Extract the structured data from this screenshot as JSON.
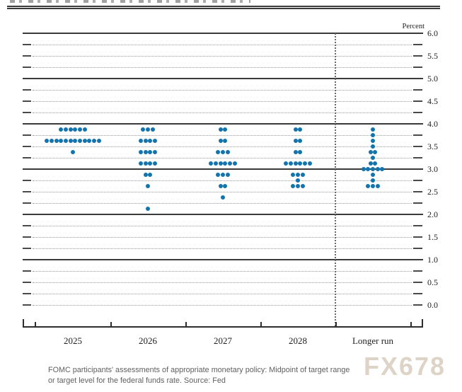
{
  "header": {
    "percent_label": "Percent"
  },
  "watermark": "FX678",
  "caption": {
    "line1": "FOMC participants' assessments of appropriate monetary policy: Midpoint of target range",
    "line2": "or target level for the federal funds rate. Source: Fed"
  },
  "y_axis_labels": [
    "6.0",
    "5.5",
    "5.0",
    "4.5",
    "4.0",
    "3.5",
    "3.0",
    "2.5",
    "2.0",
    "1.5",
    "1.0",
    "0.5",
    "0.0"
  ],
  "chart_data": {
    "type": "scatter",
    "title": "FOMC dot plot",
    "ylabel": "Percent",
    "ylim": [
      0.0,
      6.0
    ],
    "grid_step": 0.25,
    "labeled_tick_step": 0.5,
    "solid_gridlines_at": [
      6.0,
      5.0,
      4.0,
      3.0,
      2.0,
      1.0
    ],
    "grid": "on",
    "legend_position": "none",
    "dot_color": "#1373ad",
    "categories": [
      "2025",
      "2026",
      "2027",
      "2028",
      "Longer run"
    ],
    "separator_before_category": "Longer run",
    "series": [
      {
        "name": "2025",
        "dots": [
          {
            "rate": 3.875,
            "count": 6
          },
          {
            "rate": 3.625,
            "count": 12
          },
          {
            "rate": 3.375,
            "count": 1
          }
        ]
      },
      {
        "name": "2026",
        "dots": [
          {
            "rate": 3.875,
            "count": 3
          },
          {
            "rate": 3.625,
            "count": 4
          },
          {
            "rate": 3.375,
            "count": 4
          },
          {
            "rate": 3.125,
            "count": 4
          },
          {
            "rate": 2.875,
            "count": 2
          },
          {
            "rate": 2.625,
            "count": 1
          },
          {
            "rate": 2.125,
            "count": 1
          }
        ]
      },
      {
        "name": "2027",
        "dots": [
          {
            "rate": 3.875,
            "count": 2
          },
          {
            "rate": 3.625,
            "count": 2
          },
          {
            "rate": 3.375,
            "count": 3
          },
          {
            "rate": 3.125,
            "count": 6
          },
          {
            "rate": 2.875,
            "count": 3
          },
          {
            "rate": 2.625,
            "count": 2
          },
          {
            "rate": 2.375,
            "count": 1
          }
        ]
      },
      {
        "name": "2028",
        "dots": [
          {
            "rate": 3.875,
            "count": 2
          },
          {
            "rate": 3.625,
            "count": 2
          },
          {
            "rate": 3.375,
            "count": 2
          },
          {
            "rate": 3.125,
            "count": 6
          },
          {
            "rate": 2.875,
            "count": 3
          },
          {
            "rate": 2.75,
            "count": 1
          },
          {
            "rate": 2.625,
            "count": 3
          }
        ]
      },
      {
        "name": "Longer run",
        "dots": [
          {
            "rate": 3.875,
            "count": 1
          },
          {
            "rate": 3.75,
            "count": 1
          },
          {
            "rate": 3.625,
            "count": 1
          },
          {
            "rate": 3.5,
            "count": 1
          },
          {
            "rate": 3.375,
            "count": 2
          },
          {
            "rate": 3.25,
            "count": 1
          },
          {
            "rate": 3.125,
            "count": 2
          },
          {
            "rate": 3.0,
            "count": 5
          },
          {
            "rate": 2.875,
            "count": 1
          },
          {
            "rate": 2.75,
            "count": 1
          },
          {
            "rate": 2.625,
            "count": 3
          }
        ]
      }
    ]
  }
}
